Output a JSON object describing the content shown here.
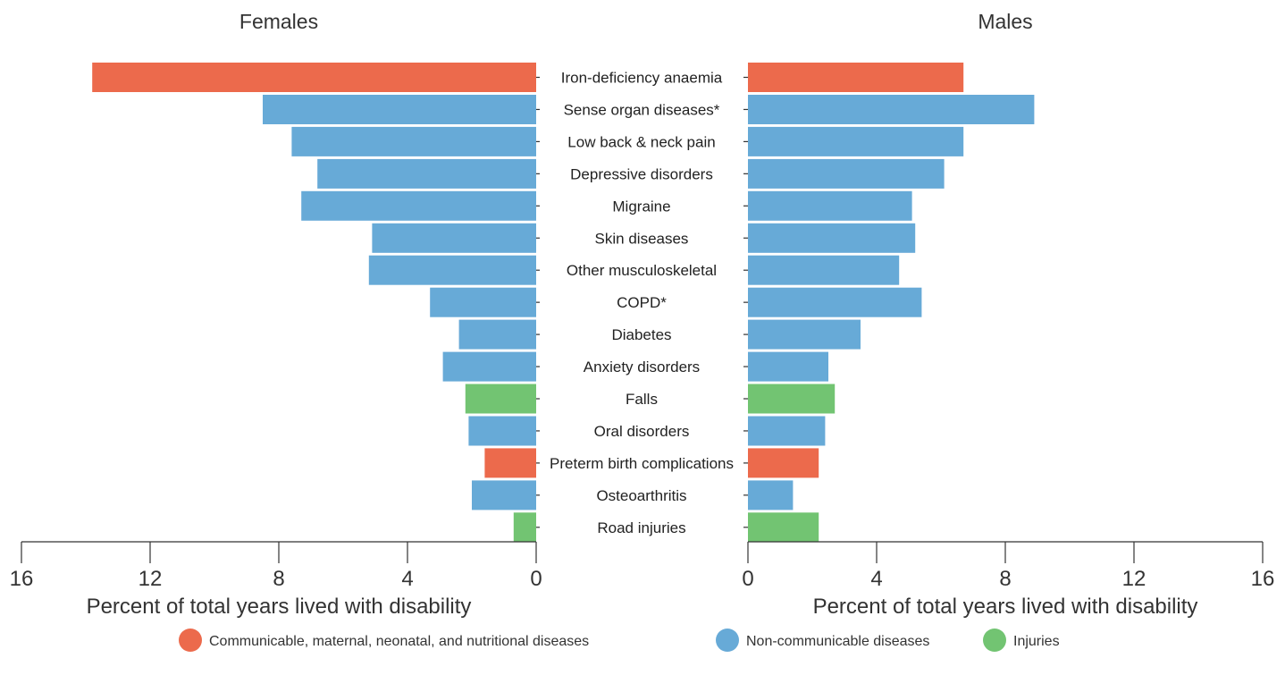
{
  "chart_data": {
    "type": "bar",
    "orientation": "horizontal",
    "layout": "back-to-back",
    "categories": [
      "Iron-deficiency anaemia",
      "Sense organ diseases*",
      "Low back & neck pain",
      "Depressive disorders",
      "Migraine",
      "Skin diseases",
      "Other musculoskeletal",
      "COPD*",
      "Diabetes",
      "Anxiety disorders",
      "Falls",
      "Oral disorders",
      "Preterm birth complications",
      "Osteoarthritis",
      "Road injuries"
    ],
    "category_group": [
      "communicable",
      "ncd",
      "ncd",
      "ncd",
      "ncd",
      "ncd",
      "ncd",
      "ncd",
      "ncd",
      "ncd",
      "injuries",
      "ncd",
      "communicable",
      "ncd",
      "injuries"
    ],
    "panels": [
      {
        "title": "Females",
        "direction": "left",
        "values": [
          13.8,
          8.5,
          7.6,
          6.8,
          7.3,
          5.1,
          5.2,
          3.3,
          2.4,
          2.9,
          2.2,
          2.1,
          1.6,
          2.0,
          0.7
        ],
        "xlabel": "Percent of total years lived with disability",
        "xlim": [
          0,
          16
        ],
        "ticks": [
          16,
          12,
          8,
          4,
          0
        ]
      },
      {
        "title": "Males",
        "direction": "right",
        "values": [
          6.7,
          8.9,
          6.7,
          6.1,
          5.1,
          5.2,
          4.7,
          5.4,
          3.5,
          2.5,
          2.7,
          2.4,
          2.2,
          1.4,
          2.2
        ],
        "xlabel": "Percent of total years lived with disability",
        "xlim": [
          0,
          16
        ],
        "ticks": [
          0,
          4,
          8,
          12,
          16
        ]
      }
    ],
    "legend": {
      "placement": "bottom",
      "items": [
        {
          "key": "communicable",
          "label": "Communicable, maternal, neonatal, and nutritional diseases",
          "color": "#ec6a4c"
        },
        {
          "key": "ncd",
          "label": "Non-communicable diseases",
          "color": "#67aad7"
        },
        {
          "key": "injuries",
          "label": "Injuries",
          "color": "#72c472"
        }
      ]
    },
    "grid": false
  }
}
